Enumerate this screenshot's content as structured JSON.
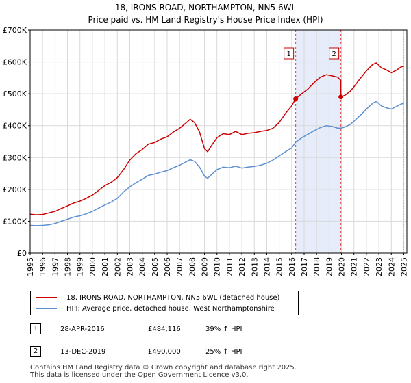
{
  "header": {
    "title_line1": "18, IRONS ROAD, NORTHAMPTON, NN5 6WL",
    "title_line2": "Price paid vs. HM Land Registry's House Price Index (HPI)"
  },
  "chart_data": {
    "type": "line",
    "xlim": [
      1995,
      2025.25
    ],
    "ylim": [
      0,
      700000
    ],
    "y_ticks": [
      0,
      100000,
      200000,
      300000,
      400000,
      500000,
      600000,
      700000
    ],
    "y_tick_labels": [
      "£0",
      "£100K",
      "£200K",
      "£300K",
      "£400K",
      "£500K",
      "£600K",
      "£700K"
    ],
    "x_ticks": [
      1995,
      1996,
      1997,
      1998,
      1999,
      2000,
      2001,
      2002,
      2003,
      2004,
      2005,
      2006,
      2007,
      2008,
      2009,
      2010,
      2011,
      2012,
      2013,
      2014,
      2015,
      2016,
      2017,
      2018,
      2019,
      2020,
      2021,
      2022,
      2023,
      2024,
      2025
    ],
    "x_tick_labels": [
      "1995",
      "1996",
      "1997",
      "1998",
      "1999",
      "2000",
      "2001",
      "2002",
      "2003",
      "2004",
      "2005",
      "2006",
      "2007",
      "2008",
      "2009",
      "2010",
      "2011",
      "2012",
      "2013",
      "2014",
      "2015",
      "2016",
      "2017",
      "2018",
      "2019",
      "2020",
      "2021",
      "2022",
      "2023",
      "2024",
      "2025"
    ],
    "grid": true,
    "shaded_region": [
      2016.32,
      2019.95
    ],
    "series": [
      {
        "name": "18, IRONS ROAD, NORTHAMPTON, NN5 6WL (detached house)",
        "color": "#cc0000",
        "points": [
          [
            1995.0,
            122000
          ],
          [
            1995.5,
            120000
          ],
          [
            1996.0,
            121000
          ],
          [
            1996.5,
            126000
          ],
          [
            1997.0,
            131000
          ],
          [
            1997.5,
            140000
          ],
          [
            1998.0,
            148000
          ],
          [
            1998.5,
            157000
          ],
          [
            1999.0,
            163000
          ],
          [
            1999.5,
            172000
          ],
          [
            2000.0,
            182000
          ],
          [
            2000.5,
            197000
          ],
          [
            2001.0,
            212000
          ],
          [
            2001.5,
            222000
          ],
          [
            2002.0,
            237000
          ],
          [
            2002.5,
            262000
          ],
          [
            2003.0,
            292000
          ],
          [
            2003.5,
            312000
          ],
          [
            2004.0,
            325000
          ],
          [
            2004.5,
            342000
          ],
          [
            2005.0,
            347000
          ],
          [
            2005.5,
            358000
          ],
          [
            2006.0,
            365000
          ],
          [
            2006.5,
            380000
          ],
          [
            2007.0,
            392000
          ],
          [
            2007.5,
            408000
          ],
          [
            2007.85,
            420000
          ],
          [
            2008.2,
            410000
          ],
          [
            2008.6,
            380000
          ],
          [
            2009.0,
            328000
          ],
          [
            2009.25,
            318000
          ],
          [
            2009.6,
            340000
          ],
          [
            2010.0,
            362000
          ],
          [
            2010.5,
            375000
          ],
          [
            2011.0,
            372000
          ],
          [
            2011.5,
            382000
          ],
          [
            2012.0,
            372000
          ],
          [
            2012.5,
            376000
          ],
          [
            2013.0,
            378000
          ],
          [
            2013.5,
            382000
          ],
          [
            2014.0,
            385000
          ],
          [
            2014.5,
            392000
          ],
          [
            2015.0,
            410000
          ],
          [
            2015.5,
            438000
          ],
          [
            2016.0,
            462000
          ],
          [
            2016.32,
            484116
          ],
          [
            2016.8,
            500000
          ],
          [
            2017.3,
            515000
          ],
          [
            2017.8,
            535000
          ],
          [
            2018.3,
            552000
          ],
          [
            2018.8,
            560000
          ],
          [
            2019.3,
            556000
          ],
          [
            2019.7,
            552000
          ],
          [
            2019.94,
            542000
          ],
          [
            2019.95,
            490000
          ],
          [
            2020.3,
            496000
          ],
          [
            2020.7,
            508000
          ],
          [
            2021.0,
            522000
          ],
          [
            2021.5,
            548000
          ],
          [
            2022.0,
            572000
          ],
          [
            2022.5,
            592000
          ],
          [
            2022.8,
            597000
          ],
          [
            2023.2,
            582000
          ],
          [
            2023.6,
            575000
          ],
          [
            2024.0,
            566000
          ],
          [
            2024.4,
            574000
          ],
          [
            2024.8,
            585000
          ],
          [
            2025.0,
            586000
          ]
        ]
      },
      {
        "name": "HPI: Average price, detached house, West Northamptonshire",
        "color": "#5b8fd0",
        "points": [
          [
            1995.0,
            87000
          ],
          [
            1995.5,
            86000
          ],
          [
            1996.0,
            87000
          ],
          [
            1996.5,
            89000
          ],
          [
            1997.0,
            93000
          ],
          [
            1997.5,
            100000
          ],
          [
            1998.0,
            106000
          ],
          [
            1998.5,
            113000
          ],
          [
            1999.0,
            117000
          ],
          [
            1999.5,
            123000
          ],
          [
            2000.0,
            131000
          ],
          [
            2000.5,
            141000
          ],
          [
            2001.0,
            151000
          ],
          [
            2001.5,
            160000
          ],
          [
            2002.0,
            172000
          ],
          [
            2002.5,
            192000
          ],
          [
            2003.0,
            208000
          ],
          [
            2003.5,
            221000
          ],
          [
            2004.0,
            232000
          ],
          [
            2004.5,
            244000
          ],
          [
            2005.0,
            248000
          ],
          [
            2005.5,
            254000
          ],
          [
            2006.0,
            259000
          ],
          [
            2006.5,
            268000
          ],
          [
            2007.0,
            276000
          ],
          [
            2007.5,
            286000
          ],
          [
            2007.85,
            293000
          ],
          [
            2008.2,
            288000
          ],
          [
            2008.6,
            270000
          ],
          [
            2009.0,
            242000
          ],
          [
            2009.25,
            235000
          ],
          [
            2009.6,
            248000
          ],
          [
            2010.0,
            262000
          ],
          [
            2010.5,
            270000
          ],
          [
            2011.0,
            268000
          ],
          [
            2011.5,
            273000
          ],
          [
            2012.0,
            267000
          ],
          [
            2012.5,
            270000
          ],
          [
            2013.0,
            272000
          ],
          [
            2013.5,
            276000
          ],
          [
            2014.0,
            282000
          ],
          [
            2014.5,
            292000
          ],
          [
            2015.0,
            305000
          ],
          [
            2015.5,
            318000
          ],
          [
            2016.0,
            330000
          ],
          [
            2016.32,
            348000
          ],
          [
            2016.8,
            362000
          ],
          [
            2017.3,
            373000
          ],
          [
            2017.8,
            384000
          ],
          [
            2018.3,
            394000
          ],
          [
            2018.8,
            400000
          ],
          [
            2019.3,
            397000
          ],
          [
            2019.7,
            392000
          ],
          [
            2019.95,
            392000
          ],
          [
            2020.3,
            396000
          ],
          [
            2020.7,
            404000
          ],
          [
            2021.0,
            414000
          ],
          [
            2021.5,
            432000
          ],
          [
            2022.0,
            452000
          ],
          [
            2022.5,
            470000
          ],
          [
            2022.8,
            476000
          ],
          [
            2023.2,
            462000
          ],
          [
            2023.6,
            456000
          ],
          [
            2024.0,
            452000
          ],
          [
            2024.4,
            460000
          ],
          [
            2024.8,
            468000
          ],
          [
            2025.0,
            470000
          ]
        ]
      }
    ],
    "sales": [
      {
        "num": "1",
        "date": "28-APR-2016",
        "x": 2016.32,
        "price": "£484,116",
        "value": 484116,
        "hpi": "39% ↑ HPI"
      },
      {
        "num": "2",
        "date": "13-DEC-2019",
        "x": 2019.95,
        "price": "£490,000",
        "value": 490000,
        "hpi": "25% ↑ HPI"
      }
    ]
  },
  "legend": {
    "item1": "18, IRONS ROAD, NORTHAMPTON, NN5 6WL (detached house)",
    "item2": "HPI: Average price, detached house, West Northamptonshire",
    "color1": "#cc0000",
    "color2": "#5b8fd0"
  },
  "footer": {
    "line1": "Contains HM Land Registry data © Crown copyright and database right 2025.",
    "line2": "This data is licensed under the Open Government Licence v3.0."
  }
}
